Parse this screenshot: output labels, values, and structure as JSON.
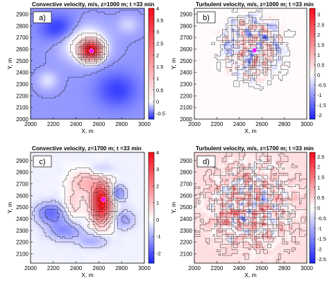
{
  "chart_data": [
    {
      "type": "heatmap",
      "panel_label": "a)",
      "title": "Convective velocity, m/s,    z=1000 m;    t =33 min",
      "xlabel": "X, m",
      "ylabel": "Y, m",
      "x_ticks": [
        "2000",
        "2200",
        "2400",
        "2600",
        "2800",
        "3000"
      ],
      "y_ticks": [
        "2000",
        "2100",
        "2200",
        "2300",
        "2400",
        "2500",
        "2600",
        "2700",
        "2800",
        "2900"
      ],
      "xlim": [
        2000,
        3000
      ],
      "ylim": [
        2000,
        2950
      ],
      "colorbar_ticks": [
        "4",
        "3.5",
        "3",
        "2.5",
        "2",
        "1.5",
        "1",
        "0.5",
        "0",
        "-0.5"
      ],
      "clim": [
        -0.75,
        4
      ],
      "field": {
        "background": -0.35,
        "blobs": [
          {
            "x": 2530,
            "y": 2590,
            "amp": 4.3,
            "sx": 85,
            "sy": 75
          },
          {
            "x": 2470,
            "y": 2650,
            "amp": 0.55,
            "sx": 190,
            "sy": 150
          },
          {
            "x": 2250,
            "y": 2780,
            "amp": -0.35,
            "sx": 160,
            "sy": 110
          },
          {
            "x": 2760,
            "y": 2250,
            "amp": -0.3,
            "sx": 180,
            "sy": 150
          },
          {
            "x": 2150,
            "y": 2330,
            "amp": 0.25,
            "sx": 90,
            "sy": 80
          },
          {
            "x": 2860,
            "y": 2810,
            "amp": 0.2,
            "sx": 100,
            "sy": 80
          }
        ],
        "noise": 0
      },
      "marker": {
        "x": 2535,
        "y": 2585,
        "color": "#ff00ff"
      }
    },
    {
      "type": "heatmap",
      "panel_label": "b)",
      "title": "Turbulent velocity, m/s,    z=1000 m;    t =33 min",
      "xlabel": "X, m",
      "ylabel": "Y, m",
      "x_ticks": [
        "2000",
        "2200",
        "2400",
        "2600",
        "2800",
        "3000"
      ],
      "y_ticks": [
        "2000",
        "2100",
        "2200",
        "2300",
        "2400",
        "2500",
        "2600",
        "2700",
        "2800",
        "2900"
      ],
      "xlim": [
        2000,
        3000
      ],
      "ylim": [
        2000,
        2950
      ],
      "colorbar_ticks": [
        "3",
        "2.5",
        "2",
        "1.5",
        "1",
        "0.5",
        "0",
        "-0.5",
        "-1",
        "-1.5",
        "-2"
      ],
      "clim": [
        -2.2,
        3.3
      ],
      "field": {
        "background": 0.05,
        "blobs": [],
        "noise": 2.6,
        "noise_center": [
          2520,
          2620
        ],
        "noise_radius": 250
      },
      "marker": {
        "x": 2535,
        "y": 2590,
        "color": "#ff00ff"
      }
    },
    {
      "type": "heatmap",
      "panel_label": "c)",
      "title": "Convective velocity,    z=1700 m;    t =33 min",
      "xlabel": "X, m",
      "ylabel": "Y, m",
      "x_ticks": [
        "2000",
        "2200",
        "2400",
        "2600",
        "2800",
        "3000"
      ],
      "y_ticks": [
        "2100",
        "2200",
        "2300",
        "2400",
        "2500",
        "2600",
        "2700",
        "2800",
        "2900"
      ],
      "xlim": [
        2000,
        3000
      ],
      "ylim": [
        2020,
        2970
      ],
      "colorbar_ticks": [
        "4",
        "3",
        "2",
        "1",
        "0",
        "-1",
        "-2"
      ],
      "clim": [
        -2.6,
        4
      ],
      "field": {
        "background": -0.15,
        "blobs": [
          {
            "x": 2620,
            "y": 2540,
            "amp": 4.2,
            "sx": 90,
            "sy": 170
          },
          {
            "x": 2470,
            "y": 2720,
            "amp": 1.3,
            "sx": 120,
            "sy": 90
          },
          {
            "x": 2380,
            "y": 2530,
            "amp": 0.8,
            "sx": 90,
            "sy": 120
          },
          {
            "x": 2180,
            "y": 2450,
            "amp": -1.6,
            "sx": 130,
            "sy": 90
          },
          {
            "x": 2300,
            "y": 2300,
            "amp": -1.2,
            "sx": 150,
            "sy": 80
          },
          {
            "x": 2760,
            "y": 2620,
            "amp": -1.4,
            "sx": 70,
            "sy": 70
          },
          {
            "x": 2820,
            "y": 2400,
            "amp": -0.9,
            "sx": 90,
            "sy": 80
          },
          {
            "x": 2550,
            "y": 2210,
            "amp": -0.8,
            "sx": 130,
            "sy": 60
          },
          {
            "x": 2620,
            "y": 2820,
            "amp": -0.6,
            "sx": 100,
            "sy": 60
          }
        ],
        "noise": 0.25,
        "noise_center": [
          2500,
          2500
        ],
        "noise_radius": 380
      },
      "marker": {
        "x": 2640,
        "y": 2565,
        "color": "#ff00ff"
      }
    },
    {
      "type": "heatmap",
      "panel_label": "d)",
      "title": "Turbulent velocity, m/s,    z=1700 m;    t =33 min",
      "xlabel": "X, m",
      "ylabel": "Y, m",
      "x_ticks": [
        "2000",
        "2200",
        "2400",
        "2600",
        "2800",
        "3000"
      ],
      "y_ticks": [
        "2100",
        "2200",
        "2300",
        "2400",
        "2500",
        "2600",
        "2700",
        "2800",
        "2900"
      ],
      "xlim": [
        2000,
        3000
      ],
      "ylim": [
        2020,
        2970
      ],
      "colorbar_ticks": [
        "2.5",
        "2",
        "1.5",
        "1",
        "0.5",
        "0",
        "-0.5",
        "-1",
        "-1.5",
        "-2",
        "-2.5"
      ],
      "clim": [
        -2.7,
        2.7
      ],
      "field": {
        "background": 0.35,
        "blobs": [],
        "noise": 2.8,
        "noise_center": [
          2510,
          2520
        ],
        "noise_radius": 360
      }
    }
  ]
}
